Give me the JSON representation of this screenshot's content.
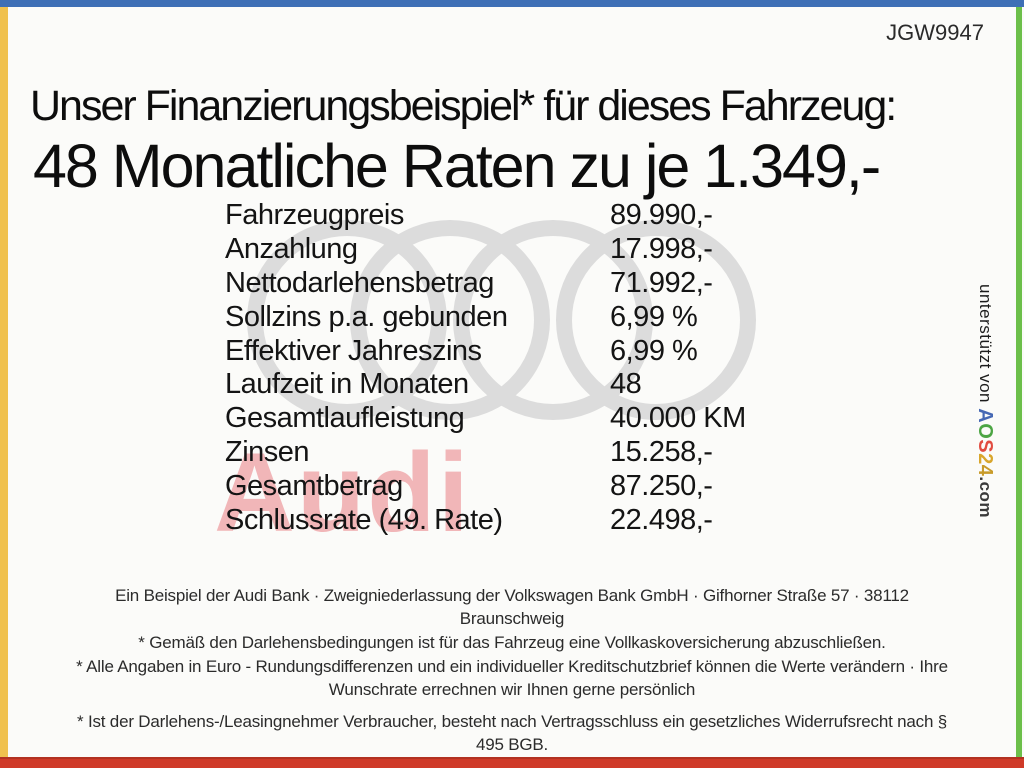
{
  "page_id": "JGW9947",
  "frame": {
    "top_color": "#3e6fb6",
    "left_color": "#f0c14e",
    "right_color": "#6cbf4a",
    "bottom_color": "#cf3a28"
  },
  "header": {
    "title_line1": "Unser Finanzierungsbeispiel* für dieses Fahrzeug:",
    "title_line2": "48 Monatliche Raten zu je 1.349,-"
  },
  "finance_table": {
    "rows": [
      {
        "label": "Fahrzeugpreis",
        "value": "89.990,-"
      },
      {
        "label": "Anzahlung",
        "value": "17.998,-"
      },
      {
        "label": "Nettodarlehensbetrag",
        "value": "71.992,-"
      },
      {
        "label": "Sollzins p.a. gebunden",
        "value": "6,99 %"
      },
      {
        "label": "Effektiver Jahreszins",
        "value": "6,99 %"
      },
      {
        "label": "Laufzeit in Monaten",
        "value": "48"
      },
      {
        "label": "Gesamtlaufleistung",
        "value": "40.000 KM"
      },
      {
        "label": "Zinsen",
        "value": "15.258,-"
      },
      {
        "label": "Gesamtbetrag",
        "value": "87.250,-"
      },
      {
        "label": "Schlussrate (49. Rate)",
        "value": "22.498,-"
      }
    ]
  },
  "watermark": {
    "brand_text": "Audi",
    "rings_color": "#dcdcdc",
    "text_color": "#f1b6b8"
  },
  "sidebar": {
    "prefix": "unterstützt von ",
    "brand_letters": [
      {
        "ch": "A",
        "color": "#4668b4"
      },
      {
        "ch": "O",
        "color": "#4ca544"
      },
      {
        "ch": "S",
        "color": "#e14c40"
      },
      {
        "ch": "2",
        "color": "#d9a62c"
      },
      {
        "ch": "4",
        "color": "#c89b2a"
      }
    ],
    "suffix": ".com"
  },
  "footer": {
    "paragraphs": [
      "Ein Beispiel der Audi Bank · Zweigniederlassung der Volkswagen Bank GmbH · Gifhorner Straße 57 · 38112 Braunschweig",
      "* Gemäß den Darlehensbedingungen ist für das Fahrzeug eine Vollkaskoversicherung abzuschließen.",
      "* Alle Angaben in Euro - Rundungsdifferenzen und ein individueller Kreditschutzbrief können die Werte verändern · Ihre Wunschrate errechnen wir Ihnen gerne persönlich",
      "* Ist der Darlehens-/Leasingnehmer Verbraucher, besteht nach Vertragsschluss ein gesetzliches Widerrufsrecht nach § 495 BGB."
    ]
  }
}
